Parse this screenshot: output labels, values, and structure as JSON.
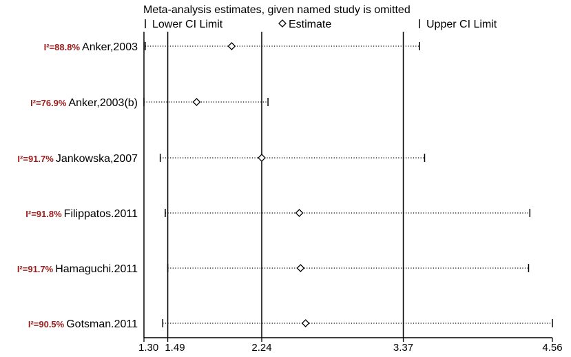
{
  "chart_data": {
    "type": "forest",
    "title": "Meta-analysis estimates, given named study is omitted",
    "legend": {
      "lower": "Lower CI Limit",
      "estimate": "Estimate",
      "upper": "Upper CI Limit",
      "placement": "top"
    },
    "x_ticks": [
      1.3,
      1.49,
      2.24,
      3.37,
      4.56
    ],
    "x_tick_labels": [
      "1.30",
      "1.49",
      "2.24",
      "3.37",
      "4.56"
    ],
    "xlim": [
      1.3,
      4.56
    ],
    "reference_lines": [
      1.49,
      2.24,
      3.37
    ],
    "studies": [
      {
        "i2": "I²=88.8%",
        "name": "Anker,2003",
        "lower": 1.31,
        "estimate": 2.0,
        "upper": 3.5
      },
      {
        "i2": "I²=76.9%",
        "name": "Anker,2003(b)",
        "lower": 1.3,
        "estimate": 1.72,
        "upper": 2.29
      },
      {
        "i2": "I²=91.7%",
        "name": "Jankowska,2007",
        "lower": 1.43,
        "estimate": 2.24,
        "upper": 3.54
      },
      {
        "i2": "I²=91.8%",
        "name": "Filippatos.2011",
        "lower": 1.47,
        "estimate": 2.54,
        "upper": 4.38
      },
      {
        "i2": "I²=91.7%",
        "name": "Hamaguchi.2011",
        "lower": 1.49,
        "estimate": 2.55,
        "upper": 4.37
      },
      {
        "i2": "I²=90.5%",
        "name": "Gotsman.2011",
        "lower": 1.45,
        "estimate": 2.59,
        "upper": 4.56
      }
    ]
  }
}
